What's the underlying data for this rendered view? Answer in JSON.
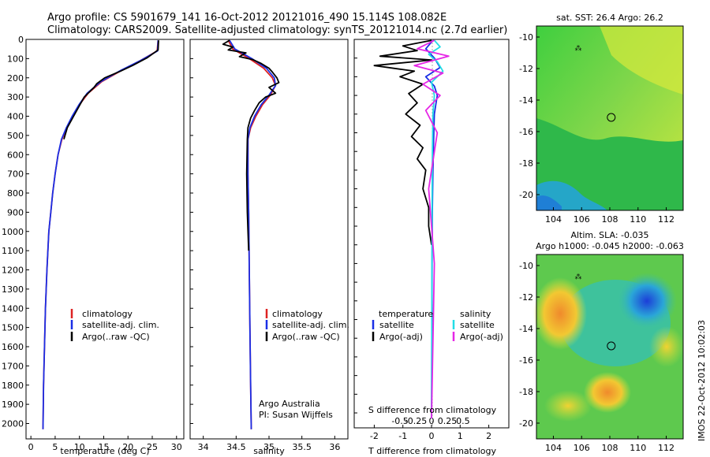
{
  "header": {
    "line1": "Argo profile: CS 5901679_141 16-Oct-2012 20121016_490 15.114S 108.082E",
    "line2": "Climatology: CARS2009. Satellite-adjusted climatology: synTS_20121014.nc (2.7d earlier)"
  },
  "colors": {
    "climatology": "#dd2222",
    "satellite": "#1a2ee6",
    "argo": "#000000",
    "sat_salinity": "#22dde6",
    "argo_salinity": "#e626e6"
  },
  "chart_data": [
    {
      "type": "line",
      "name": "temperature-profile",
      "xlabel": "temperature (deg C)",
      "ylabel": "",
      "xlim": [
        -1,
        31.5
      ],
      "ylim": [
        2080,
        0
      ],
      "xticks": [
        "0",
        "5",
        "10",
        "15",
        "20",
        "25",
        "30"
      ],
      "yticks": [
        "0",
        "100",
        "200",
        "300",
        "400",
        "500",
        "600",
        "700",
        "800",
        "900",
        "1000",
        "1100",
        "1200",
        "1300",
        "1400",
        "1500",
        "1600",
        "1700",
        "1800",
        "1900",
        "2000"
      ],
      "legend": [
        "climatology",
        "satellite-adj. clim.",
        "Argo(..raw -QC)"
      ],
      "series": [
        {
          "name": "climatology",
          "x": [
            26.2,
            26.0,
            22.6,
            18.8,
            14.6,
            11.8,
            10.0,
            8.6,
            7.4,
            6.4,
            5.6,
            5.0,
            4.5,
            4.1,
            3.7,
            3.3,
            3.0,
            2.8,
            2.6,
            2.5
          ],
          "y": [
            5,
            60,
            110,
            160,
            220,
            280,
            340,
            400,
            460,
            520,
            600,
            700,
            800,
            900,
            1000,
            1200,
            1400,
            1600,
            1800,
            2030
          ]
        },
        {
          "name": "satellite-adj. clim.",
          "x": [
            26.2,
            26.1,
            22.6,
            18.6,
            14.4,
            11.6,
            9.9,
            8.5,
            7.3,
            6.3,
            5.6,
            5.0,
            4.5,
            4.1,
            3.7,
            3.3,
            3.0,
            2.8,
            2.6,
            2.5
          ],
          "y": [
            5,
            60,
            110,
            160,
            220,
            280,
            340,
            400,
            460,
            520,
            600,
            700,
            800,
            900,
            1000,
            1200,
            1400,
            1600,
            1800,
            2030
          ]
        },
        {
          "name": "Argo(..raw -QC)",
          "x": [
            26.3,
            26.2,
            24.0,
            21.0,
            18.5,
            15.2,
            13.6,
            13.0,
            11.0,
            10.0,
            8.8,
            7.5,
            6.8
          ],
          "y": [
            5,
            55,
            95,
            135,
            165,
            200,
            230,
            250,
            300,
            345,
            400,
            460,
            520
          ]
        }
      ]
    },
    {
      "type": "line",
      "name": "salinity-profile",
      "xlabel": "salinity",
      "ylabel": "",
      "xlim": [
        33.8,
        36.2
      ],
      "ylim": [
        2080,
        0
      ],
      "xticks": [
        "34",
        "34.5",
        "35",
        "35.5",
        "36"
      ],
      "legend": [
        "climatology",
        "satellite-adj. clim.",
        "Argo(..raw -QC)"
      ],
      "annotation": [
        "Argo Australia",
        "PI: Susan Wijffels"
      ],
      "series": [
        {
          "name": "climatology",
          "x": [
            34.38,
            34.45,
            34.7,
            34.92,
            35.05,
            35.1,
            35.02,
            34.9,
            34.8,
            34.72,
            34.68,
            34.68,
            34.69,
            34.7,
            34.71,
            34.72,
            34.73
          ],
          "y": [
            5,
            50,
            100,
            150,
            200,
            240,
            290,
            340,
            400,
            460,
            520,
            700,
            900,
            1200,
            1500,
            1800,
            2030
          ]
        },
        {
          "name": "satellite-adj. clim.",
          "x": [
            34.4,
            34.48,
            34.74,
            34.96,
            35.08,
            35.1,
            35.0,
            34.88,
            34.78,
            34.71,
            34.68,
            34.68,
            34.69,
            34.7,
            34.71,
            34.72,
            34.73
          ],
          "y": [
            5,
            50,
            100,
            150,
            200,
            240,
            290,
            340,
            400,
            460,
            520,
            700,
            900,
            1200,
            1500,
            1800,
            2030
          ]
        },
        {
          "name": "Argo(..raw -QC)",
          "x": [
            34.4,
            34.3,
            34.45,
            34.38,
            34.65,
            34.55,
            34.75,
            34.88,
            35.0,
            35.05,
            35.12,
            35.15,
            35.0,
            35.1,
            34.95,
            34.85,
            34.78,
            34.72,
            34.68,
            34.67,
            34.66,
            34.67,
            34.69
          ],
          "y": [
            5,
            25,
            40,
            55,
            70,
            90,
            105,
            125,
            150,
            170,
            200,
            225,
            250,
            280,
            300,
            330,
            370,
            410,
            460,
            520,
            700,
            900,
            1100
          ]
        }
      ]
    },
    {
      "type": "line",
      "name": "difference-profile",
      "xlabel": "T difference from climatology",
      "top_label": "S difference from climatology",
      "xlim": [
        -2.7,
        2.7
      ],
      "ylim": [
        2080,
        0
      ],
      "xticks": [
        "-2",
        "-1",
        "0",
        "1",
        "2"
      ],
      "top_ticks": [
        "-0.5",
        "-0.25",
        "0",
        "0.25",
        "0.5"
      ],
      "legend": [
        "temperature",
        "satellite",
        "Argo(-adj)",
        "salinity",
        "satellite",
        "Argo(-adj)"
      ],
      "series": [
        {
          "name": "temperature satellite",
          "x": [
            0.05,
            -0.2,
            0.1,
            0.3,
            -0.2,
            0.1,
            0.2,
            0.15,
            0.1,
            0.08,
            0.05,
            0.03,
            0.02,
            0.01,
            0.0
          ],
          "y": [
            5,
            50,
            100,
            150,
            200,
            250,
            300,
            350,
            400,
            500,
            700,
            900,
            1200,
            1600,
            2030
          ]
        },
        {
          "name": "temperature Argo(-adj)",
          "x": [
            0.0,
            -1.0,
            -0.5,
            -1.8,
            0.0,
            -2.0,
            -0.6,
            -1.1,
            -0.3,
            -0.8,
            -0.5,
            -0.9,
            -0.4,
            -0.7,
            -0.3,
            -0.5,
            -0.2,
            -0.3,
            -0.1,
            -0.1,
            0.0
          ],
          "y": [
            5,
            35,
            60,
            90,
            110,
            140,
            170,
            200,
            240,
            290,
            340,
            400,
            460,
            520,
            580,
            640,
            700,
            800,
            900,
            1000,
            1100
          ]
        },
        {
          "name": "salinity satellite",
          "x": [
            0.1,
            0.3,
            -0.1,
            0.2,
            0.4,
            0.0,
            0.1,
            0.05,
            0.03,
            0.02,
            0.01,
            0.0
          ],
          "y": [
            5,
            40,
            80,
            120,
            170,
            230,
            300,
            400,
            600,
            900,
            1400,
            2030
          ]
        },
        {
          "name": "salinity Argo(-adj)",
          "x": [
            0.1,
            -0.5,
            0.6,
            -0.6,
            0.4,
            -0.3,
            0.3,
            -0.2,
            0.2,
            -0.1,
            0.1,
            0.0
          ],
          "y": [
            5,
            50,
            90,
            140,
            180,
            240,
            300,
            380,
            500,
            800,
            1200,
            2030
          ]
        }
      ]
    }
  ],
  "map_top": {
    "title": "sat. SST: 26.4  Argo: 26.2",
    "xticks": [
      "104",
      "106",
      "108",
      "110",
      "112"
    ],
    "yticks": [
      "-10",
      "-12",
      "-14",
      "-16",
      "-18",
      "-20"
    ],
    "float_lon": 108.1,
    "float_lat": -15.1
  },
  "map_bottom": {
    "title1": "Altim. SLA: -0.035",
    "title2": "Argo h1000: -0.045 h2000: -0.063",
    "xticks": [
      "104",
      "106",
      "108",
      "110",
      "112"
    ],
    "yticks": [
      "-10",
      "-12",
      "-14",
      "-16",
      "-18",
      "-20"
    ],
    "float_lon": 108.1,
    "float_lat": -15.1
  },
  "footer": {
    "watermark": "IMOS 22-Oct-2012 10:02:03"
  }
}
